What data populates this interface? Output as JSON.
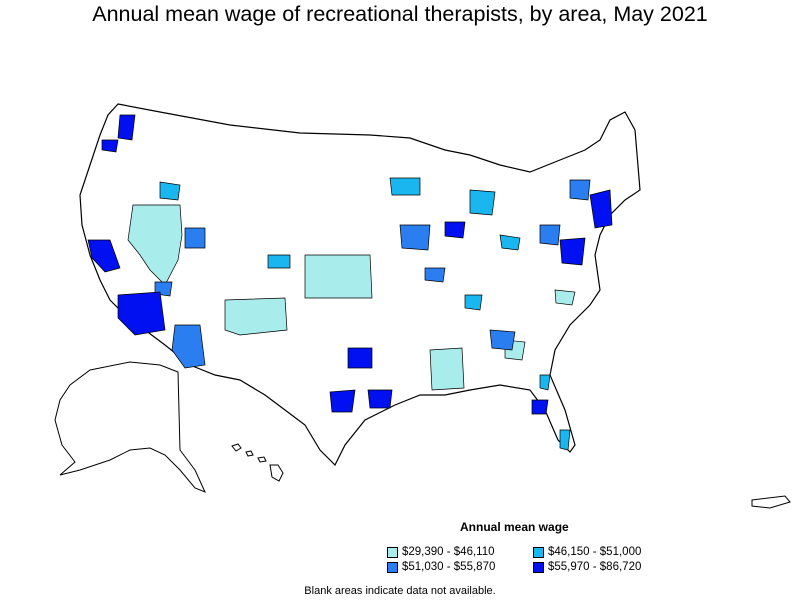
{
  "title": "Annual mean wage of recreational therapists, by area, May 2021",
  "legend": {
    "title": "Annual mean wage",
    "items": [
      {
        "label": "$29,390 - $46,110",
        "color": "#a8ecec"
      },
      {
        "label": "$46,150 - $51,000",
        "color": "#19b6f0"
      },
      {
        "label": "$51,030 - $55,870",
        "color": "#2a7ef0"
      },
      {
        "label": "$55,970 - $86,720",
        "color": "#0010f0"
      }
    ]
  },
  "note": "Blank areas indicate data not available.",
  "colors": {
    "background": "#ffffff",
    "border": "#000000",
    "no_data": "#ffffff"
  }
}
